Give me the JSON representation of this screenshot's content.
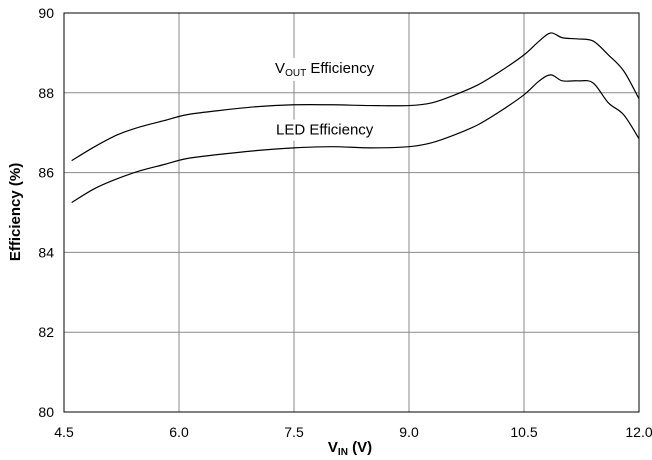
{
  "chart_data": {
    "type": "line",
    "xlabel": {
      "main": "V",
      "sub": "IN",
      "rest": " (V)"
    },
    "ylabel": "Efficiency (%)",
    "xlim": [
      4.5,
      12.0
    ],
    "ylim": [
      80,
      90
    ],
    "xticks": [
      "4.5",
      "6.0",
      "7.5",
      "9.0",
      "10.5",
      "12.0"
    ],
    "yticks": [
      "80",
      "82",
      "84",
      "86",
      "88",
      "90"
    ],
    "grid": true,
    "series": [
      {
        "name": "VOUT Efficiency",
        "label": {
          "main": "V",
          "sub": "OUT",
          "rest": " Efficiency"
        },
        "x": [
          4.6,
          4.9,
          5.2,
          5.5,
          5.8,
          6.1,
          6.5,
          7.0,
          7.5,
          8.0,
          8.5,
          9.0,
          9.3,
          9.6,
          9.9,
          10.2,
          10.5,
          10.7,
          10.85,
          11.0,
          11.2,
          11.4,
          11.6,
          11.8,
          12.0
        ],
        "y": [
          86.3,
          86.65,
          86.95,
          87.15,
          87.3,
          87.45,
          87.55,
          87.65,
          87.7,
          87.7,
          87.68,
          87.68,
          87.75,
          87.95,
          88.2,
          88.55,
          88.95,
          89.3,
          89.5,
          89.38,
          89.35,
          89.3,
          88.95,
          88.55,
          87.85
        ]
      },
      {
        "name": "LED Efficiency",
        "label": {
          "main": "LED Efficiency",
          "sub": "",
          "rest": ""
        },
        "x": [
          4.6,
          4.9,
          5.2,
          5.5,
          5.8,
          6.1,
          6.5,
          7.0,
          7.5,
          8.0,
          8.5,
          9.0,
          9.3,
          9.6,
          9.9,
          10.2,
          10.5,
          10.7,
          10.85,
          11.0,
          11.2,
          11.4,
          11.6,
          11.8,
          12.0
        ],
        "y": [
          85.25,
          85.6,
          85.85,
          86.05,
          86.2,
          86.35,
          86.45,
          86.55,
          86.62,
          86.65,
          86.62,
          86.65,
          86.75,
          86.95,
          87.2,
          87.55,
          87.95,
          88.3,
          88.45,
          88.3,
          88.3,
          88.25,
          87.75,
          87.45,
          86.85
        ]
      }
    ]
  }
}
